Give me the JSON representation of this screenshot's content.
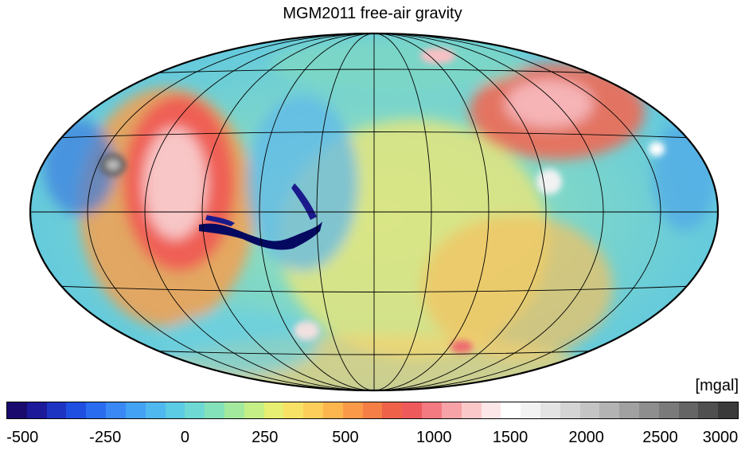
{
  "title": "MGM2011 free-air gravity",
  "unit_label": "[mgal]",
  "colorbar": {
    "tick_labels": [
      "-500",
      "-250",
      "0",
      "250",
      "500",
      "1000",
      "1500",
      "2000",
      "2500",
      "3000"
    ],
    "colors": [
      "#1a0a6e",
      "#1c1a9a",
      "#1d34c2",
      "#1f4fe0",
      "#2a6cf0",
      "#3a88f5",
      "#44a2f5",
      "#4fb8ef",
      "#5ccbe4",
      "#6ed8d4",
      "#84e2bb",
      "#a2e99e",
      "#c4ef86",
      "#e6ef72",
      "#f8e266",
      "#fdcf5a",
      "#fdb54e",
      "#fa9a48",
      "#f57e46",
      "#ef6249",
      "#ee5a5c",
      "#f27a80",
      "#f7a2a6",
      "#fbc8ca",
      "#fde6e7",
      "#ffffff",
      "#f2f2f2",
      "#e3e3e3",
      "#d4d4d4",
      "#c4c4c4",
      "#b3b3b3",
      "#a1a1a1",
      "#8e8e8e",
      "#7a7a7a",
      "#656565",
      "#4f4f4f",
      "#3a3a3a"
    ]
  },
  "map": {
    "projection": "hammer",
    "graticule": "30-degree"
  }
}
